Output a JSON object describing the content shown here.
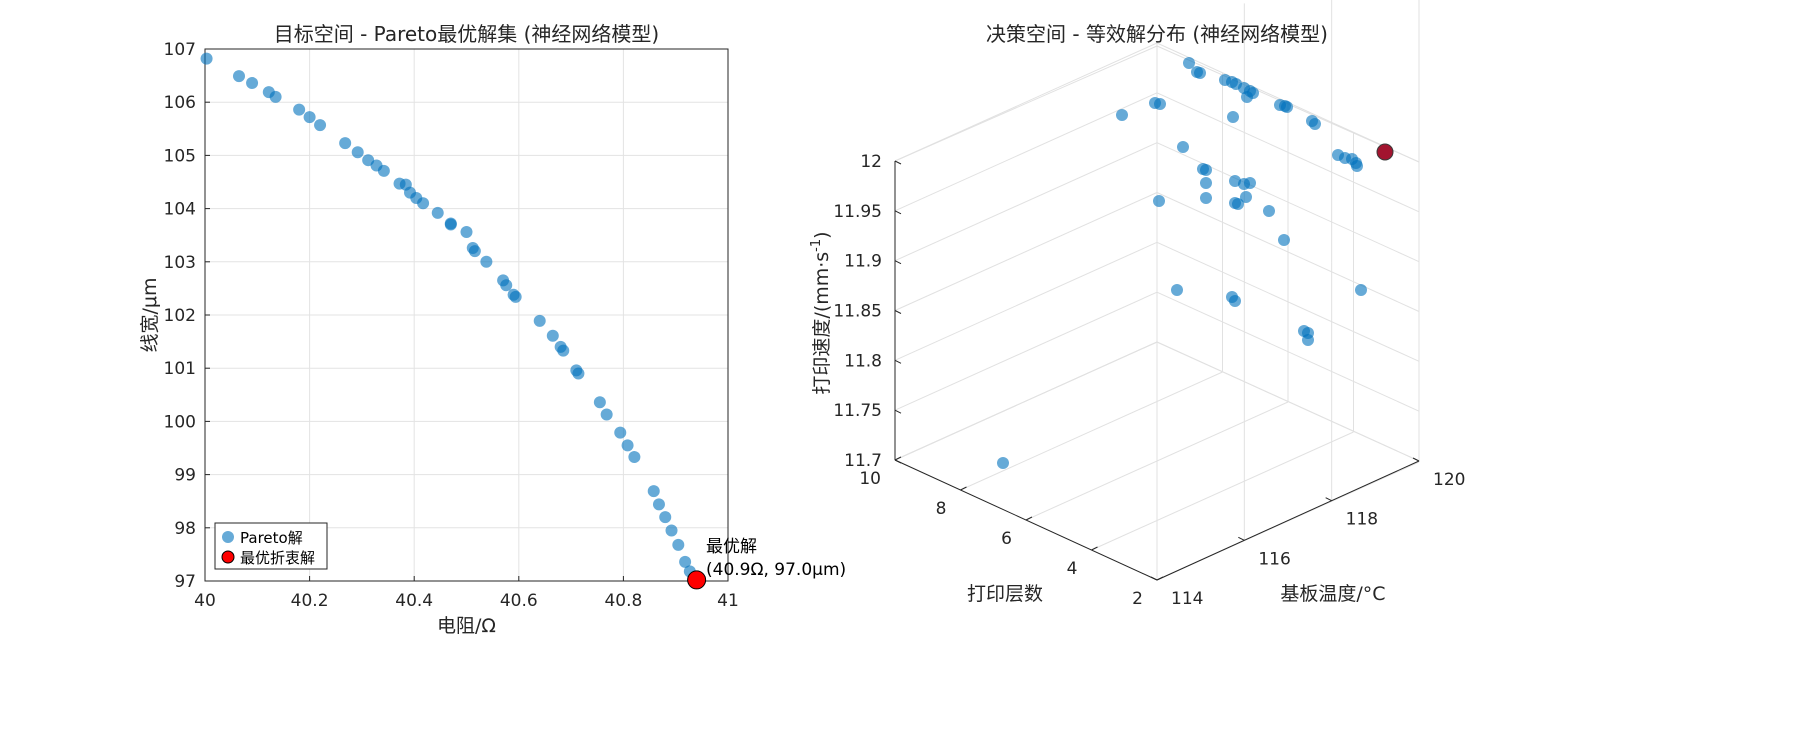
{
  "chart_data": [
    {
      "type": "scatter",
      "title": "目标空间 - Pareto最优解集 (神经网络模型)",
      "xlabel": "电阻/Ω",
      "ylabel": "线宽/μm",
      "xlim": [
        40,
        41
      ],
      "ylim": [
        97,
        107
      ],
      "xticks": [
        "40",
        "40.2",
        "40.4",
        "40.6",
        "40.8",
        "41"
      ],
      "yticks": [
        "97",
        "98",
        "99",
        "100",
        "101",
        "102",
        "103",
        "104",
        "105",
        "106",
        "107"
      ],
      "grid": true,
      "legend_position": "bottom-left",
      "colors": {
        "pareto": "#0072BD",
        "best": "#ff0000"
      },
      "series": [
        {
          "name": "Pareto解",
          "points": [
            [
              40.003,
              106.82
            ],
            [
              40.065,
              106.49
            ],
            [
              40.09,
              106.36
            ],
            [
              40.122,
              106.19
            ],
            [
              40.135,
              106.1
            ],
            [
              40.18,
              105.86
            ],
            [
              40.2,
              105.72
            ],
            [
              40.22,
              105.57
            ],
            [
              40.268,
              105.23
            ],
            [
              40.292,
              105.06
            ],
            [
              40.312,
              104.91
            ],
            [
              40.328,
              104.81
            ],
            [
              40.342,
              104.71
            ],
            [
              40.372,
              104.47
            ],
            [
              40.384,
              104.45
            ],
            [
              40.392,
              104.3
            ],
            [
              40.404,
              104.2
            ],
            [
              40.417,
              104.1
            ],
            [
              40.445,
              103.92
            ],
            [
              40.47,
              103.7
            ],
            [
              40.47,
              103.72
            ],
            [
              40.5,
              103.56
            ],
            [
              40.512,
              103.26
            ],
            [
              40.516,
              103.2
            ],
            [
              40.538,
              103.0
            ],
            [
              40.57,
              102.65
            ],
            [
              40.576,
              102.56
            ],
            [
              40.59,
              102.38
            ],
            [
              40.594,
              102.34
            ],
            [
              40.64,
              101.89
            ],
            [
              40.665,
              101.61
            ],
            [
              40.68,
              101.4
            ],
            [
              40.685,
              101.33
            ],
            [
              40.71,
              100.96
            ],
            [
              40.714,
              100.9
            ],
            [
              40.755,
              100.36
            ],
            [
              40.768,
              100.13
            ],
            [
              40.794,
              99.79
            ],
            [
              40.808,
              99.55
            ],
            [
              40.821,
              99.33
            ],
            [
              40.858,
              98.69
            ],
            [
              40.868,
              98.44
            ],
            [
              40.88,
              98.2
            ],
            [
              40.892,
              97.95
            ],
            [
              40.905,
              97.68
            ],
            [
              40.918,
              97.36
            ],
            [
              40.927,
              97.18
            ]
          ]
        },
        {
          "name": "最优折衷解",
          "points": [
            [
              40.94,
              97.02
            ]
          ]
        }
      ],
      "annotation": {
        "line1": "最优解",
        "line2": "(40.9Ω, 97.0μm)"
      }
    },
    {
      "type": "scatter3d",
      "title": "决策空间 - 等效解分布 (神经网络模型)",
      "xlabel": "打印层数",
      "ylabel": "基板温度/°C",
      "zlabel": "打印速度/(mm·s",
      "zlabel_sup": "-1",
      "zlabel_end": ")",
      "xlim": [
        2,
        10
      ],
      "ylim": [
        114,
        120
      ],
      "zlim": [
        11.7,
        12
      ],
      "xticks": [
        "2",
        "4",
        "6",
        "8",
        "10"
      ],
      "yticks": [
        "114",
        "116",
        "118",
        "120"
      ],
      "zticks": [
        "11.7",
        "11.75",
        "11.8",
        "11.85",
        "11.9",
        "11.95",
        "12"
      ],
      "grid": true,
      "colors": {
        "points": "#0072BD",
        "best": "#A2142F",
        "box": "#262626",
        "gridline": "#e1e1e1"
      },
      "projected_points": [
        [
          1189,
          63
        ],
        [
          1197,
          72
        ],
        [
          1200,
          73
        ],
        [
          1225,
          80
        ],
        [
          1232,
          82
        ],
        [
          1236,
          84
        ],
        [
          1244,
          88
        ],
        [
          1247,
          97
        ],
        [
          1250,
          91
        ],
        [
          1253,
          93
        ],
        [
          1155,
          103
        ],
        [
          1160,
          104
        ],
        [
          1122,
          115
        ],
        [
          1233,
          117
        ],
        [
          1280,
          105
        ],
        [
          1285,
          106
        ],
        [
          1287,
          107
        ],
        [
          1312,
          121
        ],
        [
          1315,
          124
        ],
        [
          1183,
          147
        ],
        [
          1203,
          169
        ],
        [
          1206,
          170
        ],
        [
          1206,
          183
        ],
        [
          1235,
          181
        ],
        [
          1244,
          184
        ],
        [
          1250,
          183
        ],
        [
          1159,
          201
        ],
        [
          1206,
          198
        ],
        [
          1235,
          203
        ],
        [
          1238,
          204
        ],
        [
          1246,
          197
        ],
        [
          1269,
          211
        ],
        [
          1284,
          240
        ],
        [
          1338,
          155
        ],
        [
          1345,
          158
        ],
        [
          1352,
          159
        ],
        [
          1356,
          163
        ],
        [
          1357,
          166
        ],
        [
          1177,
          290
        ],
        [
          1232,
          297
        ],
        [
          1235,
          301
        ],
        [
          1304,
          331
        ],
        [
          1308,
          333
        ],
        [
          1308,
          340
        ],
        [
          1361,
          290
        ],
        [
          1003,
          463
        ]
      ],
      "best_projected_point": [
        1385,
        152
      ]
    }
  ]
}
